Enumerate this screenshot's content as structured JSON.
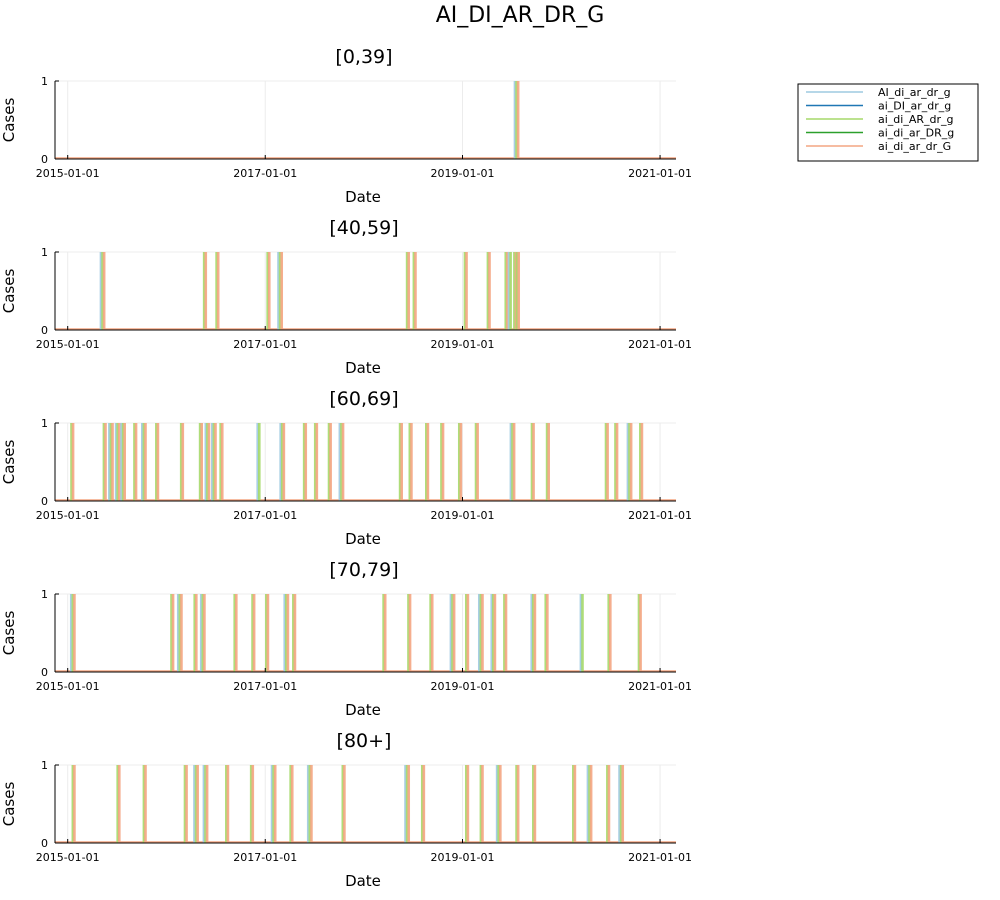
{
  "chart_data": {
    "type": "line",
    "title": "AI_DI_AR_DR_G",
    "x_ticks": [
      "2015-01-01",
      "2017-01-01",
      "2019-01-01",
      "2021-01-01"
    ],
    "xlim": [
      "2014-11-15",
      "2021-03-01"
    ],
    "xlabel": "Date",
    "ylabel": "Cases",
    "y_ticks": [
      0,
      1
    ],
    "ylim": [
      0,
      1
    ],
    "grid": true,
    "legend_position": "top-right outside",
    "legend": [
      {
        "name": "AI_di_ar_dr_g",
        "color": "#9ecae1"
      },
      {
        "name": "ai_DI_ar_dr_g",
        "color": "#1f77b4"
      },
      {
        "name": "ai_di_AR_dr_g",
        "color": "#a6d96a"
      },
      {
        "name": "ai_di_ar_DR_g",
        "color": "#2ca02c"
      },
      {
        "name": "ai_di_ar_dr_G",
        "color": "#f4a582"
      }
    ],
    "panels": [
      {
        "title": "[0,39]",
        "events": [
          {
            "date": "2019-07-20",
            "series": [
              0,
              2,
              4
            ]
          }
        ]
      },
      {
        "title": "[40,59]",
        "events": [
          {
            "date": "2015-05-10",
            "series": [
              0,
              2,
              4
            ]
          },
          {
            "date": "2016-05-20",
            "series": [
              2,
              4
            ]
          },
          {
            "date": "2016-07-05",
            "series": [
              2,
              4
            ]
          },
          {
            "date": "2017-01-10",
            "series": [
              2,
              4
            ]
          },
          {
            "date": "2017-02-25",
            "series": [
              0,
              2,
              4
            ]
          },
          {
            "date": "2018-06-10",
            "series": [
              2,
              4
            ]
          },
          {
            "date": "2018-07-05",
            "series": [
              2,
              4
            ]
          },
          {
            "date": "2019-01-10",
            "series": [
              2,
              4
            ]
          },
          {
            "date": "2019-04-05",
            "series": [
              2,
              4
            ]
          },
          {
            "date": "2019-06-10",
            "series": [
              2,
              4
            ]
          },
          {
            "date": "2019-06-28",
            "series": [
              0,
              2
            ]
          },
          {
            "date": "2019-07-12",
            "series": [
              2,
              4
            ]
          },
          {
            "date": "2019-07-22",
            "series": [
              2,
              4
            ]
          }
        ]
      },
      {
        "title": "[60,69]",
        "events": [
          {
            "date": "2015-01-15",
            "series": [
              2,
              4
            ]
          },
          {
            "date": "2015-05-15",
            "series": [
              2,
              4
            ]
          },
          {
            "date": "2015-06-10",
            "series": [
              0,
              2,
              4
            ]
          },
          {
            "date": "2015-07-05",
            "series": [
              0,
              2,
              4
            ]
          },
          {
            "date": "2015-07-25",
            "series": [
              0,
              2,
              4
            ]
          },
          {
            "date": "2015-09-05",
            "series": [
              2,
              4
            ]
          },
          {
            "date": "2015-10-10",
            "series": [
              0,
              2,
              4
            ]
          },
          {
            "date": "2015-11-25",
            "series": [
              2,
              4
            ]
          },
          {
            "date": "2016-02-25",
            "series": [
              2,
              4
            ]
          },
          {
            "date": "2016-05-05",
            "series": [
              2,
              4
            ]
          },
          {
            "date": "2016-06-01",
            "series": [
              0,
              2,
              4
            ]
          },
          {
            "date": "2016-06-25",
            "series": [
              0,
              2,
              4
            ]
          },
          {
            "date": "2016-07-20",
            "series": [
              2,
              4
            ]
          },
          {
            "date": "2016-12-10",
            "series": [
              0,
              2
            ]
          },
          {
            "date": "2017-03-05",
            "series": [
              0,
              2,
              4
            ]
          },
          {
            "date": "2017-05-25",
            "series": [
              2,
              4
            ]
          },
          {
            "date": "2017-07-05",
            "series": [
              2,
              4
            ]
          },
          {
            "date": "2017-08-25",
            "series": [
              2,
              4
            ]
          },
          {
            "date": "2017-10-10",
            "series": [
              0,
              2,
              4
            ]
          },
          {
            "date": "2018-05-15",
            "series": [
              2,
              4
            ]
          },
          {
            "date": "2018-06-20",
            "series": [
              2,
              4
            ]
          },
          {
            "date": "2018-08-20",
            "series": [
              2,
              4
            ]
          },
          {
            "date": "2018-10-15",
            "series": [
              2,
              4
            ]
          },
          {
            "date": "2018-12-20",
            "series": [
              2,
              4
            ]
          },
          {
            "date": "2019-02-20",
            "series": [
              2,
              4
            ]
          },
          {
            "date": "2019-07-05",
            "series": [
              0,
              2,
              4
            ]
          },
          {
            "date": "2019-09-15",
            "series": [
              2,
              4
            ]
          },
          {
            "date": "2019-11-10",
            "series": [
              2,
              4
            ]
          },
          {
            "date": "2020-06-15",
            "series": [
              2,
              4
            ]
          },
          {
            "date": "2020-07-20",
            "series": [
              2,
              4
            ]
          },
          {
            "date": "2020-09-10",
            "series": [
              0,
              2,
              4
            ]
          },
          {
            "date": "2020-10-20",
            "series": [
              2,
              4
            ]
          }
        ]
      },
      {
        "title": "[70,79]",
        "events": [
          {
            "date": "2015-01-20",
            "series": [
              0,
              2,
              4
            ]
          },
          {
            "date": "2016-01-20",
            "series": [
              2,
              4
            ]
          },
          {
            "date": "2016-02-20",
            "series": [
              0,
              2,
              4
            ]
          },
          {
            "date": "2016-04-15",
            "series": [
              2,
              4
            ]
          },
          {
            "date": "2016-05-15",
            "series": [
              0,
              2,
              4
            ]
          },
          {
            "date": "2016-09-10",
            "series": [
              2,
              4
            ]
          },
          {
            "date": "2016-11-15",
            "series": [
              2,
              4
            ]
          },
          {
            "date": "2017-01-05",
            "series": [
              2,
              4
            ]
          },
          {
            "date": "2017-03-20",
            "series": [
              0,
              2,
              4
            ]
          },
          {
            "date": "2017-04-15",
            "series": [
              2,
              4
            ]
          },
          {
            "date": "2018-03-15",
            "series": [
              2,
              4
            ]
          },
          {
            "date": "2018-06-15",
            "series": [
              2,
              4
            ]
          },
          {
            "date": "2018-09-05",
            "series": [
              2,
              4
            ]
          },
          {
            "date": "2018-11-25",
            "series": [
              0,
              2,
              4
            ]
          },
          {
            "date": "2019-01-15",
            "series": [
              2,
              4
            ]
          },
          {
            "date": "2019-03-10",
            "series": [
              0,
              2,
              4
            ]
          },
          {
            "date": "2019-04-25",
            "series": [
              0,
              2,
              4
            ]
          },
          {
            "date": "2019-06-05",
            "series": [
              2,
              4
            ]
          },
          {
            "date": "2019-09-20",
            "series": [
              0,
              2,
              4
            ]
          },
          {
            "date": "2019-11-05",
            "series": [
              2,
              4
            ]
          },
          {
            "date": "2020-03-20",
            "series": [
              0,
              2
            ]
          },
          {
            "date": "2020-06-25",
            "series": [
              2,
              4
            ]
          },
          {
            "date": "2020-10-15",
            "series": [
              2,
              4
            ]
          }
        ]
      },
      {
        "title": "[80+]",
        "events": [
          {
            "date": "2015-01-20",
            "series": [
              2,
              4
            ]
          },
          {
            "date": "2015-07-05",
            "series": [
              2,
              4
            ]
          },
          {
            "date": "2015-10-10",
            "series": [
              2,
              4
            ]
          },
          {
            "date": "2016-03-10",
            "series": [
              2,
              4
            ]
          },
          {
            "date": "2016-04-20",
            "series": [
              0,
              2,
              4
            ]
          },
          {
            "date": "2016-05-25",
            "series": [
              0,
              2,
              4
            ]
          },
          {
            "date": "2016-08-10",
            "series": [
              2,
              4
            ]
          },
          {
            "date": "2016-11-10",
            "series": [
              2,
              4
            ]
          },
          {
            "date": "2017-02-01",
            "series": [
              0,
              2,
              4
            ]
          },
          {
            "date": "2017-04-05",
            "series": [
              2,
              4
            ]
          },
          {
            "date": "2017-06-15",
            "series": [
              0,
              2,
              4
            ]
          },
          {
            "date": "2017-10-15",
            "series": [
              2,
              4
            ]
          },
          {
            "date": "2018-06-10",
            "series": [
              0,
              2,
              4
            ]
          },
          {
            "date": "2018-08-05",
            "series": [
              2,
              4
            ]
          },
          {
            "date": "2019-01-15",
            "series": [
              2,
              4
            ]
          },
          {
            "date": "2019-03-10",
            "series": [
              2,
              4
            ]
          },
          {
            "date": "2019-05-15",
            "series": [
              0,
              2,
              4
            ]
          },
          {
            "date": "2019-07-20",
            "series": [
              2,
              4
            ]
          },
          {
            "date": "2019-09-20",
            "series": [
              2,
              4
            ]
          },
          {
            "date": "2020-02-15",
            "series": [
              2,
              4
            ]
          },
          {
            "date": "2020-04-15",
            "series": [
              0,
              2,
              4
            ]
          },
          {
            "date": "2020-06-20",
            "series": [
              2,
              4
            ]
          },
          {
            "date": "2020-08-10",
            "series": [
              0,
              2,
              4
            ]
          }
        ]
      }
    ]
  }
}
